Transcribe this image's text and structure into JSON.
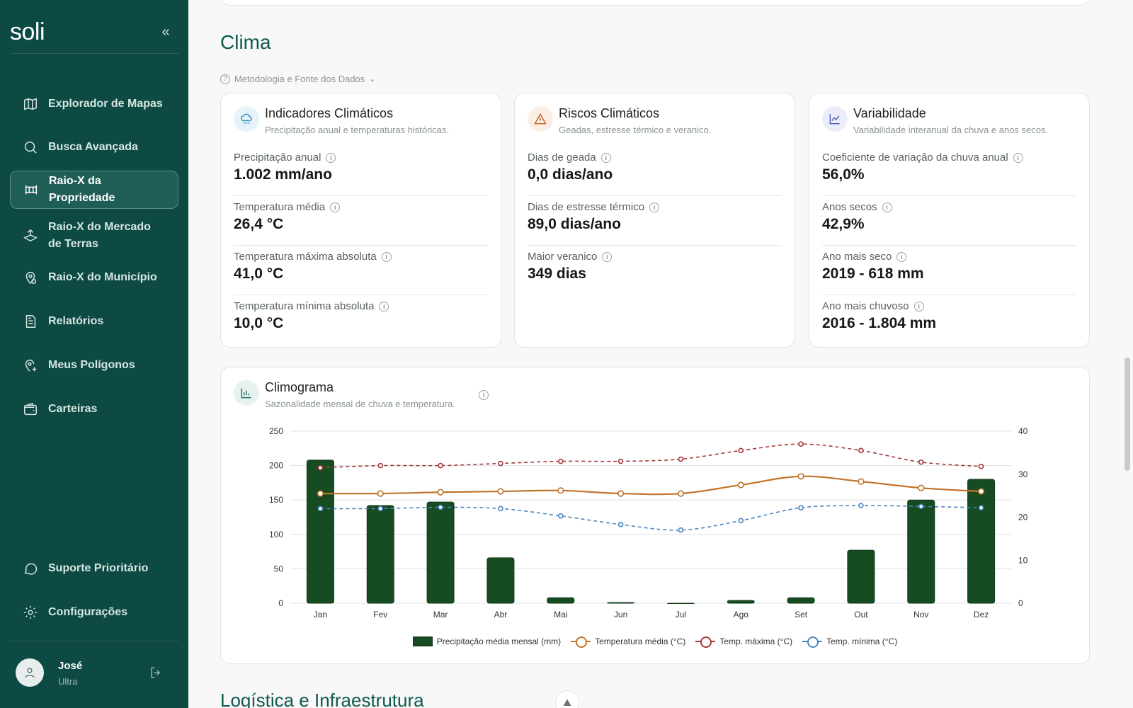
{
  "app": {
    "logo": "soli"
  },
  "sidebar": {
    "collapse_icon": "double-chevron-left-icon",
    "items": [
      {
        "label": "Explorador de Mapas",
        "icon": "map-icon"
      },
      {
        "label": "Busca Avançada",
        "icon": "search-icon"
      },
      {
        "label": "Raio-X da Propriedade",
        "icon": "property-xray-icon",
        "active": true
      },
      {
        "label": "Raio-X do Mercado de Terras",
        "icon": "land-market-icon"
      },
      {
        "label": "Raio-X do Município",
        "icon": "municipality-pin-icon"
      },
      {
        "label": "Relatórios",
        "icon": "document-icon"
      },
      {
        "label": "Meus Polígonos",
        "icon": "polygon-pin-icon"
      },
      {
        "label": "Carteiras",
        "icon": "wallet-icon"
      }
    ],
    "bottom_items": [
      {
        "label": "Suporte Prioritário",
        "icon": "chat-bubble-icon"
      },
      {
        "label": "Configurações",
        "icon": "gear-icon"
      }
    ],
    "user": {
      "name": "José",
      "plan": "Ultra"
    }
  },
  "main": {
    "section_title": "Clima",
    "methodology_label": "Metodologia e Fonte dos Dados",
    "cards": [
      {
        "title": "Indicadores Climáticos",
        "subtitle": "Precipitação anual e temperaturas históricas.",
        "metrics": [
          {
            "label": "Precipitação anual",
            "value": "1.002 mm/ano"
          },
          {
            "label": "Temperatura média",
            "value": "26,4 °C"
          },
          {
            "label": "Temperatura máxima absoluta",
            "value": "41,0 °C"
          },
          {
            "label": "Temperatura mínima absoluta",
            "value": "10,0 °C"
          }
        ]
      },
      {
        "title": "Riscos Climáticos",
        "subtitle": "Geadas, estresse térmico e veranico.",
        "metrics": [
          {
            "label": "Dias de geada",
            "value": "0,0 dias/ano"
          },
          {
            "label": "Dias de estresse térmico",
            "value": "89,0 dias/ano"
          },
          {
            "label": "Maior veranico",
            "value": "349 dias"
          }
        ]
      },
      {
        "title": "Variabilidade",
        "subtitle": "Variabilidade interanual da chuva e anos secos.",
        "metrics": [
          {
            "label": "Coeficiente de variação da chuva anual",
            "value": "56,0%"
          },
          {
            "label": "Anos secos",
            "value": "42,9%"
          },
          {
            "label": "Ano mais seco",
            "value": "2019 - 618 mm"
          },
          {
            "label": "Ano mais chuvoso",
            "value": "2016 - 1.804 mm"
          }
        ]
      }
    ],
    "climogram": {
      "title": "Climograma",
      "subtitle": "Sazonalidade mensal de chuva e temperatura."
    },
    "next_section_title": "Logística e Infraestrutura"
  },
  "chart_data": {
    "type": "bar",
    "categories": [
      "Jan",
      "Fev",
      "Mar",
      "Abr",
      "Mai",
      "Jun",
      "Jul",
      "Ago",
      "Set",
      "Out",
      "Nov",
      "Dez"
    ],
    "y_left": {
      "ylim": [
        0,
        250
      ],
      "ticks": [
        0,
        50,
        100,
        150,
        200,
        250
      ]
    },
    "y_right": {
      "ylim": [
        0,
        40
      ],
      "ticks": [
        0,
        10,
        20,
        30,
        40
      ]
    },
    "grid": true,
    "legend_position": "bottom-center",
    "series": [
      {
        "name": "Precipitação média mensal (mm)",
        "type": "bar",
        "axis": "left",
        "color": "#174b22",
        "values": [
          208,
          142,
          147,
          66,
          8,
          1,
          0,
          4,
          8,
          77,
          150,
          180
        ]
      },
      {
        "name": "Temperatura média (°C)",
        "type": "line",
        "axis": "right",
        "color": "#c0732a",
        "dash": false,
        "values": [
          25.5,
          25.5,
          25.8,
          26.0,
          26.2,
          25.5,
          25.5,
          27.5,
          29.5,
          28.3,
          26.8,
          26.0
        ]
      },
      {
        "name": "Temp. máxima (°C)",
        "type": "line",
        "axis": "right",
        "color": "#a33a3a",
        "dash": true,
        "values": [
          31.5,
          32.0,
          32.0,
          32.5,
          33.0,
          33.0,
          33.5,
          35.5,
          37.0,
          35.5,
          32.8,
          31.8
        ]
      },
      {
        "name": "Temp. mínima (°C)",
        "type": "line",
        "axis": "right",
        "color": "#4a86c0",
        "dash": true,
        "values": [
          22.0,
          22.0,
          22.3,
          22.0,
          20.3,
          18.3,
          17.0,
          19.2,
          22.2,
          22.7,
          22.5,
          22.2
        ]
      }
    ]
  }
}
